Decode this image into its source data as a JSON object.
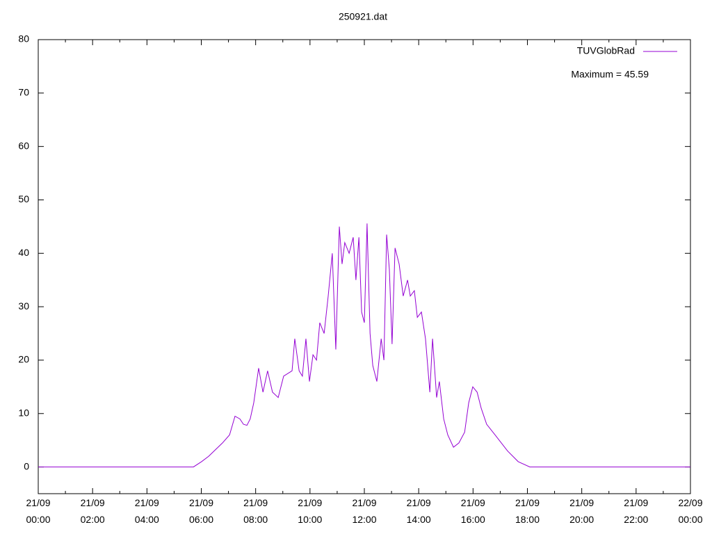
{
  "chart_data": {
    "type": "line",
    "title": "250921.dat",
    "annotation": "Maximum = 45.59",
    "legend": "top-right",
    "xlim": [
      0,
      24
    ],
    "xticks": [
      {
        "value": 0,
        "label": "21/09\n00:00"
      },
      {
        "value": 2,
        "label": "21/09\n02:00"
      },
      {
        "value": 4,
        "label": "21/09\n04:00"
      },
      {
        "value": 6,
        "label": "21/09\n06:00"
      },
      {
        "value": 8,
        "label": "21/09\n08:00"
      },
      {
        "value": 10,
        "label": "21/09\n10:00"
      },
      {
        "value": 12,
        "label": "21/09\n12:00"
      },
      {
        "value": 14,
        "label": "21/09\n14:00"
      },
      {
        "value": 16,
        "label": "21/09\n16:00"
      },
      {
        "value": 18,
        "label": "21/09\n18:00"
      },
      {
        "value": 20,
        "label": "21/09\n20:00"
      },
      {
        "value": 22,
        "label": "21/09\n22:00"
      },
      {
        "value": 24,
        "label": "22/09\n00:00"
      }
    ],
    "ylim": [
      -5,
      80
    ],
    "yticks": [
      0,
      10,
      20,
      30,
      40,
      50,
      60,
      70,
      80
    ],
    "x": [
      0,
      2,
      4,
      5.71,
      6.01,
      6.27,
      6.78,
      7.04,
      7.24,
      7.42,
      7.55,
      7.68,
      7.8,
      7.93,
      8.11,
      8.27,
      8.44,
      8.62,
      8.83,
      9.03,
      9.34,
      9.44,
      9.6,
      9.72,
      9.85,
      9.98,
      10.11,
      10.24,
      10.36,
      10.52,
      10.67,
      10.82,
      10.95,
      11.08,
      11.18,
      11.28,
      11.44,
      11.59,
      11.69,
      11.8,
      11.9,
      12.0,
      12.1,
      12.21,
      12.31,
      12.46,
      12.62,
      12.72,
      12.82,
      12.92,
      13.02,
      13.13,
      13.28,
      13.43,
      13.59,
      13.69,
      13.84,
      13.95,
      14.1,
      14.25,
      14.41,
      14.51,
      14.66,
      14.76,
      14.92,
      15.07,
      15.28,
      15.48,
      15.69,
      15.84,
      15.99,
      16.15,
      16.3,
      16.5,
      16.81,
      17.27,
      17.66,
      18.09,
      20,
      22,
      24
    ],
    "series": [
      {
        "name": "TUVGlobRad",
        "color": "#9400d3",
        "values": [
          0,
          0,
          0,
          0,
          1,
          2,
          4.5,
          6,
          9.5,
          9,
          8,
          7.8,
          9,
          12,
          18.5,
          14,
          18,
          14,
          13,
          17,
          18,
          24,
          18,
          17,
          24,
          16,
          21,
          20,
          27,
          25,
          32,
          40,
          22,
          45,
          38,
          42,
          40,
          43,
          35,
          43,
          29,
          27,
          45.59,
          25,
          19,
          16,
          24,
          20,
          43.5,
          37,
          23,
          41,
          38,
          32,
          35,
          32,
          33,
          28,
          29,
          24,
          14,
          24,
          13,
          16,
          9,
          6,
          3.7,
          4.5,
          6.5,
          12,
          15,
          14,
          11,
          8,
          6,
          3,
          1,
          0,
          0,
          0,
          0
        ]
      }
    ]
  }
}
